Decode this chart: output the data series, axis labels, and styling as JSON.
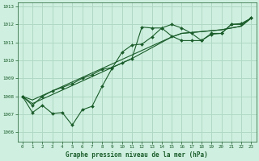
{
  "title": "Graphe pression niveau de la mer (hPa)",
  "background_color": "#cff0e0",
  "grid_color": "#b0d8c4",
  "line_color": "#1a5c2a",
  "text_color": "#1a5c2a",
  "xlim": [
    -0.5,
    23.5
  ],
  "ylim": [
    1005.5,
    1013.2
  ],
  "yticks": [
    1006,
    1007,
    1008,
    1009,
    1010,
    1011,
    1012,
    1013
  ],
  "xticks": [
    0,
    1,
    2,
    3,
    4,
    5,
    6,
    7,
    8,
    9,
    10,
    11,
    12,
    13,
    14,
    15,
    16,
    17,
    18,
    19,
    20,
    21,
    22,
    23
  ],
  "series1_marked": {
    "x": [
      0,
      1,
      2,
      3,
      4,
      5,
      6,
      7,
      8,
      9,
      10,
      11,
      12,
      13,
      14,
      15,
      16,
      17,
      18,
      19,
      20,
      21,
      22,
      23
    ],
    "y": [
      1008.0,
      1007.1,
      1007.5,
      1007.05,
      1007.1,
      1006.4,
      1007.25,
      1007.45,
      1008.55,
      1009.55,
      1010.45,
      1010.85,
      1010.9,
      1011.3,
      1011.8,
      1012.0,
      1011.8,
      1011.5,
      1011.1,
      1011.5,
      1011.5,
      1012.0,
      1012.05,
      1012.35
    ]
  },
  "series2_smooth": {
    "x": [
      0,
      1,
      2,
      3,
      4,
      5,
      6,
      7,
      8,
      9,
      10,
      11,
      12,
      13,
      14,
      15,
      16,
      17,
      18,
      19,
      20,
      21,
      22,
      23
    ],
    "y": [
      1008.0,
      1007.6,
      1007.85,
      1008.1,
      1008.35,
      1008.6,
      1008.85,
      1009.1,
      1009.35,
      1009.6,
      1009.85,
      1010.1,
      1010.4,
      1010.7,
      1011.0,
      1011.3,
      1011.5,
      1011.55,
      1011.6,
      1011.65,
      1011.7,
      1011.8,
      1011.9,
      1012.35
    ]
  },
  "series3_sparse": {
    "x": [
      0,
      1,
      2,
      3,
      4,
      5,
      6,
      7,
      8,
      9,
      10,
      11,
      12,
      13,
      14,
      15,
      16,
      17,
      18,
      19,
      20,
      21,
      22,
      23
    ],
    "y": [
      1008.0,
      1007.5,
      1008.0,
      1008.3,
      1008.5,
      1008.7,
      1009.0,
      1009.2,
      1009.5,
      1009.6,
      1009.85,
      1010.1,
      1011.85,
      1011.8,
      1011.8,
      1011.35,
      1011.1,
      1011.1,
      1011.1,
      1011.45,
      1011.5,
      1012.0,
      1012.0,
      1012.35
    ]
  },
  "series4_smooth": {
    "x": [
      0,
      1,
      2,
      3,
      4,
      5,
      6,
      7,
      8,
      9,
      10,
      11,
      12,
      13,
      14,
      15,
      16,
      17,
      18,
      19,
      20,
      21,
      22,
      23
    ],
    "y": [
      1008.0,
      1007.8,
      1008.05,
      1008.3,
      1008.55,
      1008.8,
      1009.05,
      1009.3,
      1009.55,
      1009.8,
      1010.05,
      1010.3,
      1010.55,
      1010.8,
      1011.05,
      1011.3,
      1011.5,
      1011.55,
      1011.6,
      1011.65,
      1011.7,
      1011.8,
      1011.9,
      1012.35
    ]
  }
}
